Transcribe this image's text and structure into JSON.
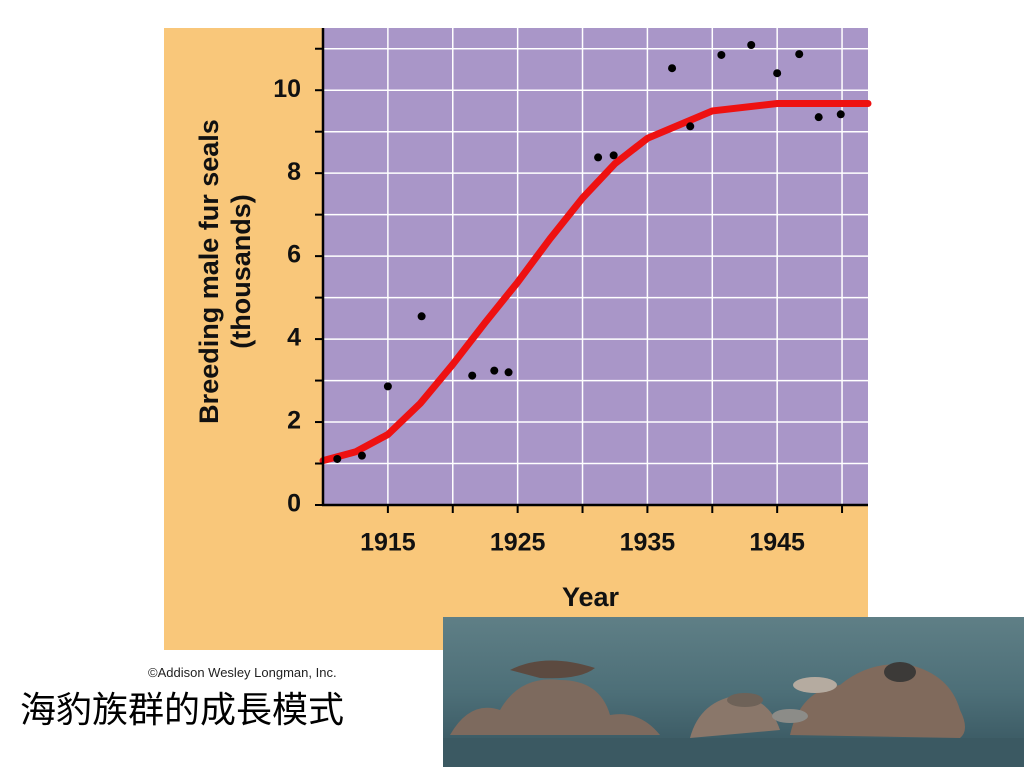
{
  "chart_data": {
    "type": "scatter",
    "xlabel": "Year",
    "ylabel": [
      "Breeding male fur seals",
      "(thousands)"
    ],
    "xlim": [
      1910,
      1952
    ],
    "ylim": [
      0,
      11.5
    ],
    "xticks": [
      1915,
      1925,
      1935,
      1945
    ],
    "yticks": [
      0,
      2,
      4,
      6,
      8,
      10
    ],
    "grid": true,
    "background": "#f9c77a",
    "plot_background": "#a996c8",
    "series": [
      {
        "mode": "markers",
        "color": "#000000",
        "x": [
          1911.1,
          1913.0,
          1915.0,
          1917.6,
          1921.5,
          1923.2,
          1924.3,
          1931.2,
          1932.4,
          1936.9,
          1938.3,
          1940.7,
          1943.0,
          1945.0,
          1946.7,
          1948.2,
          1949.9
        ],
        "values": [
          1.11,
          1.19,
          2.86,
          4.55,
          3.12,
          3.24,
          3.2,
          8.38,
          8.43,
          10.53,
          9.13,
          10.85,
          11.09,
          10.41,
          10.87,
          9.35,
          9.42
        ]
      },
      {
        "mode": "line",
        "color": "#ee1111",
        "x": [
          1910,
          1912.5,
          1915,
          1917.5,
          1920,
          1922.5,
          1925,
          1927.5,
          1930,
          1932.5,
          1935,
          1940,
          1945,
          1952
        ],
        "values": [
          1.07,
          1.28,
          1.7,
          2.45,
          3.39,
          4.4,
          5.37,
          6.42,
          7.4,
          8.23,
          8.84,
          9.5,
          9.68,
          9.68
        ]
      }
    ]
  },
  "credit": "©Addison Wesley Longman, Inc.",
  "caption": "海豹族群的成長模式"
}
